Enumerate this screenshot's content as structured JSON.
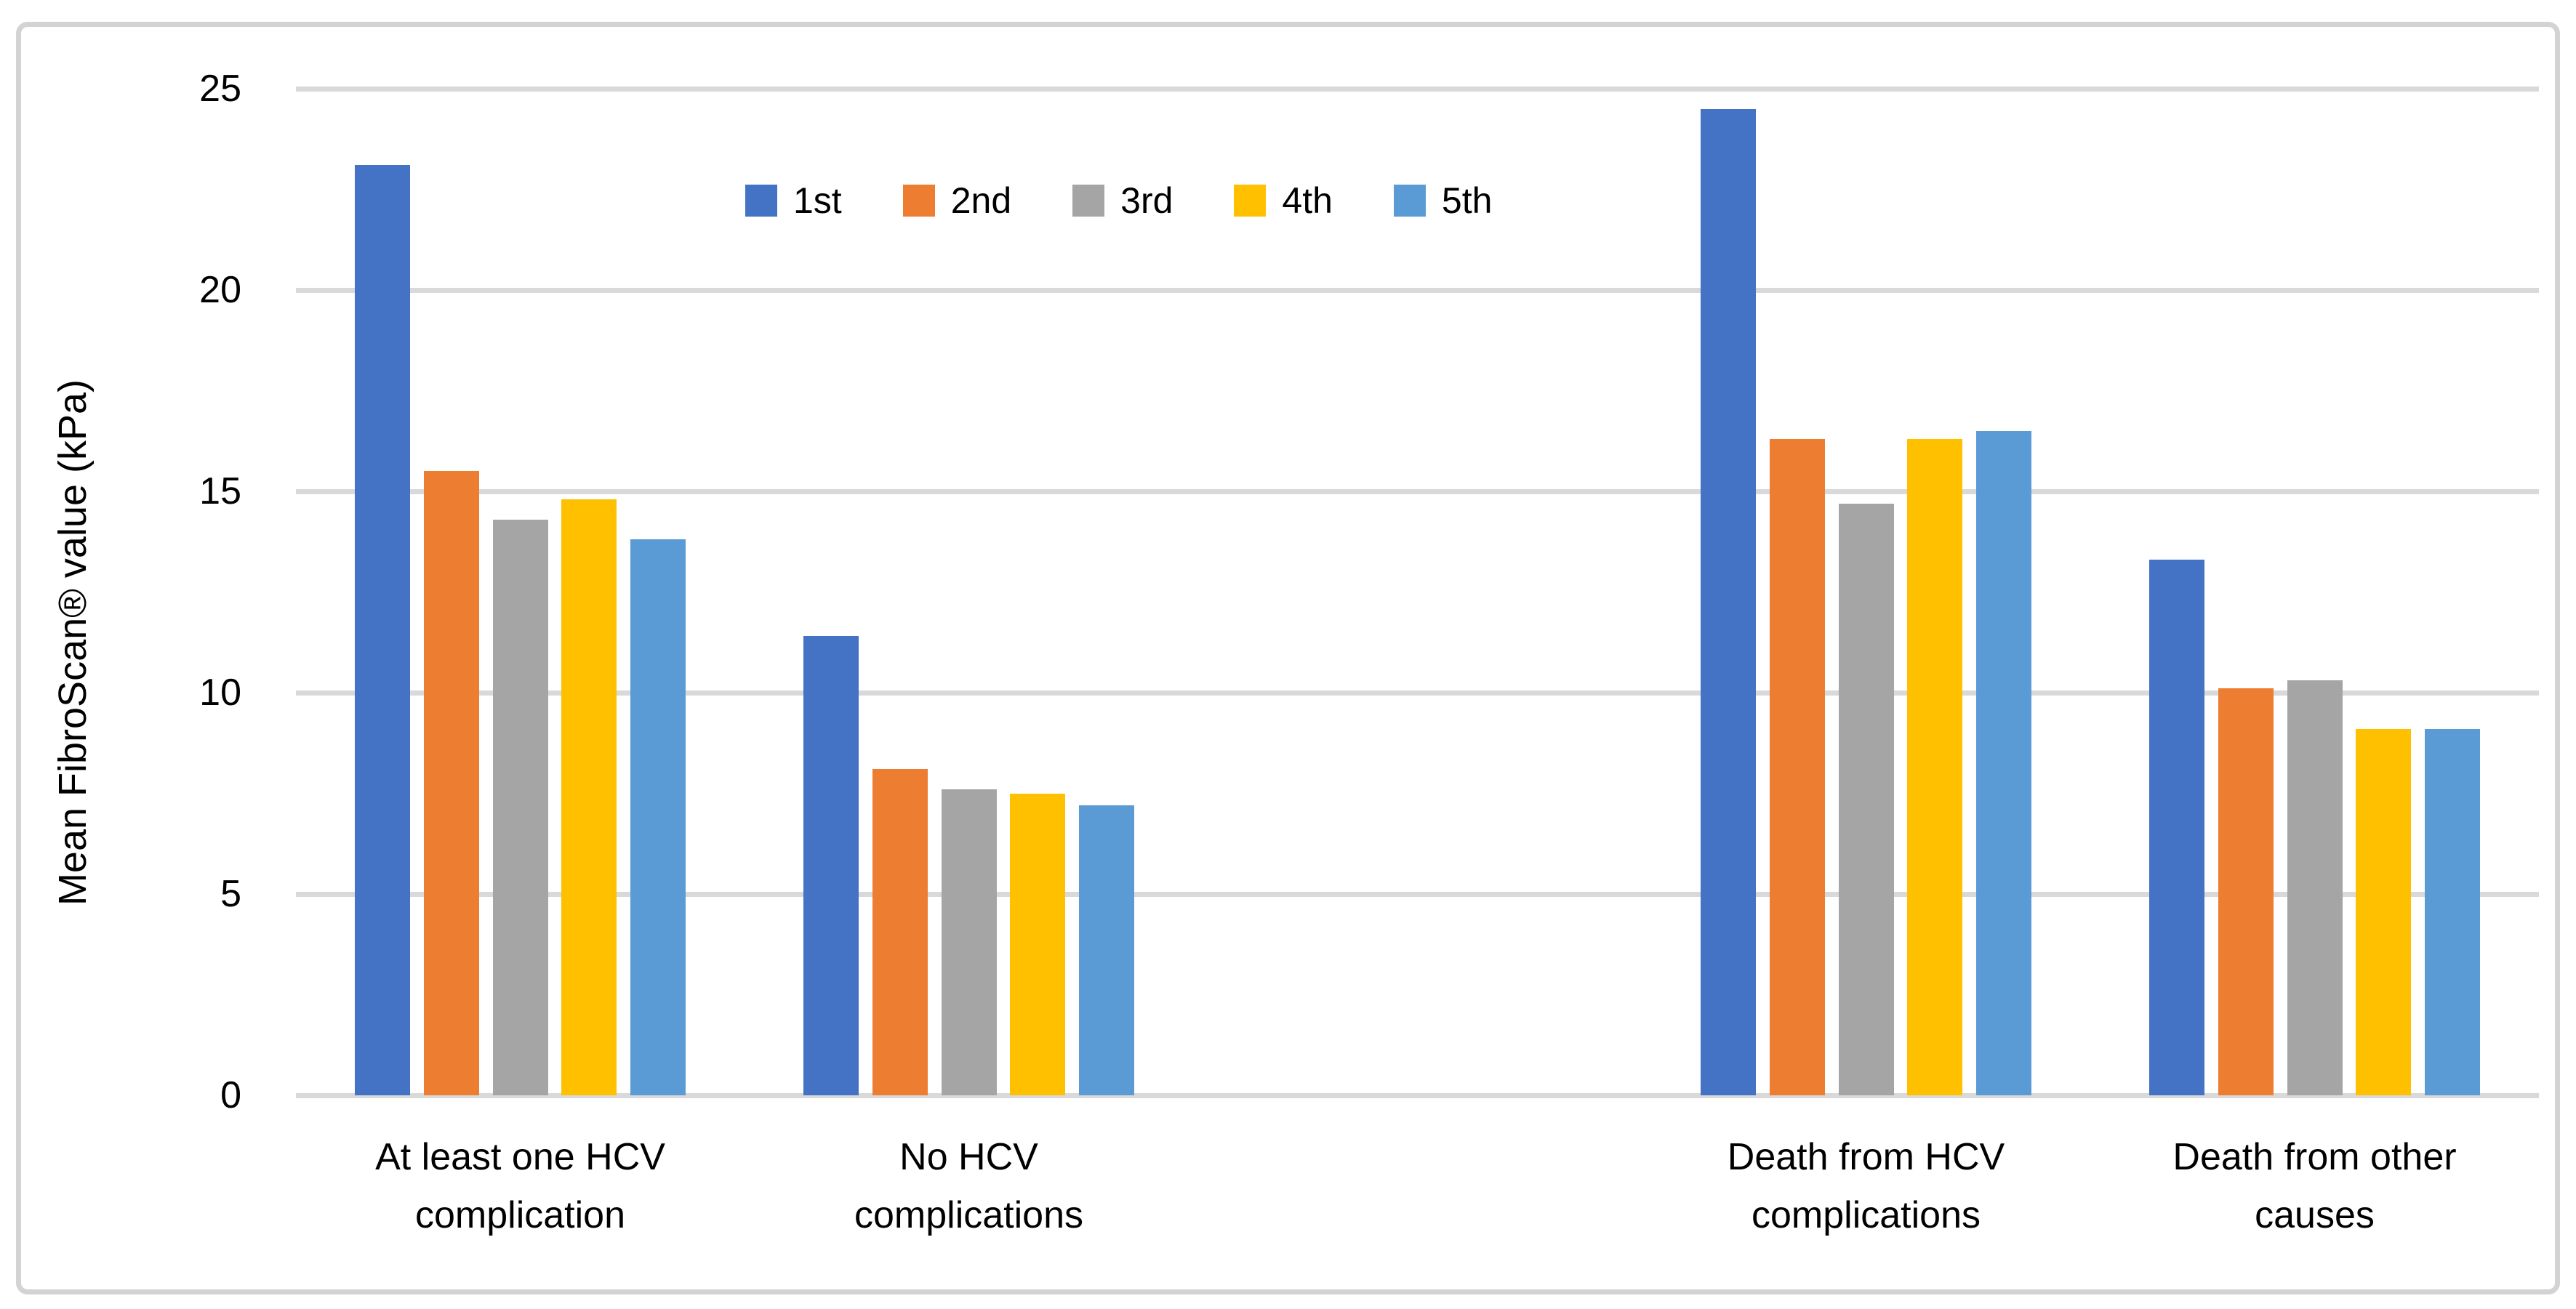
{
  "figure": {
    "background_color": "#FFFFFF",
    "border_color": "#D3D3D3"
  },
  "chart_data": {
    "type": "bar",
    "title": "",
    "xlabel": "",
    "ylabel": "Mean FibroScan® value (kPa)",
    "ylim": [
      0,
      25
    ],
    "yticks": [
      0,
      5,
      10,
      15,
      20,
      25
    ],
    "grid": true,
    "gridline_color": "#D9D9D9",
    "axis_line_color": "#D9D9D9",
    "text_color": "#000000",
    "legend_position": "top-center",
    "legend_entries": [
      "1st",
      "2nd",
      "3rd",
      "4th",
      "5th"
    ],
    "categories": [
      "At least one HCV complication",
      "No HCV complications",
      "Death from HCV complications",
      "Death from other causes"
    ],
    "category_label_lines": [
      "At least one HCV\ncomplication",
      "No HCV\ncomplications",
      "Death from HCV\ncomplications",
      "Death from other\ncauses"
    ],
    "series": [
      {
        "name": "1st",
        "color": "#4472C4",
        "values": [
          23.1,
          11.4,
          24.5,
          13.3
        ]
      },
      {
        "name": "2nd",
        "color": "#ED7D31",
        "values": [
          15.5,
          8.1,
          16.3,
          10.1
        ]
      },
      {
        "name": "3rd",
        "color": "#A5A5A5",
        "values": [
          14.3,
          7.6,
          14.7,
          10.3
        ]
      },
      {
        "name": "4th",
        "color": "#FFC000",
        "values": [
          14.8,
          7.5,
          16.3,
          9.1
        ]
      },
      {
        "name": "5th",
        "color": "#5B9BD5",
        "values": [
          13.8,
          7.2,
          16.5,
          9.1
        ]
      }
    ]
  }
}
